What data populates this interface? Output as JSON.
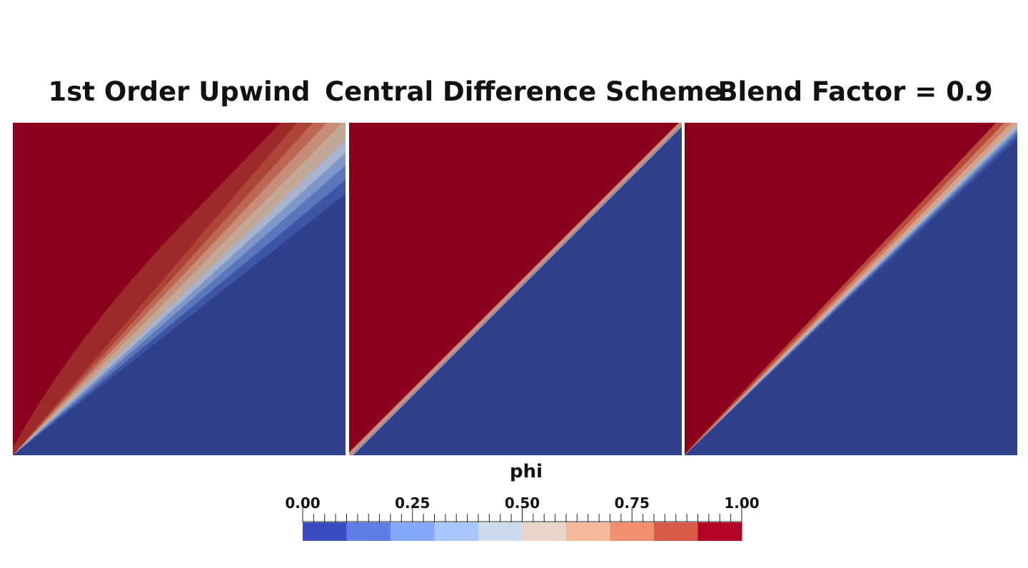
{
  "panels": [
    {
      "title": "1st Order Upwind"
    },
    {
      "title": "Central Difference Scheme"
    },
    {
      "title": "Blend Factor = 0.9"
    }
  ],
  "field_colors": {
    "high": "#8c011e",
    "low": "#30408d"
  },
  "colorbar": {
    "title": "phi",
    "range": [
      0.0,
      1.0
    ],
    "tick_labels": [
      "0.00",
      "0.25",
      "0.50",
      "0.75",
      "1.00"
    ],
    "bands": [
      "#3b4cc0",
      "#5f7fe6",
      "#84a8fa",
      "#aac7fd",
      "#cdd9ec",
      "#ead4c8",
      "#f5b89c",
      "#f0906e",
      "#da5a49",
      "#b40426"
    ]
  }
}
